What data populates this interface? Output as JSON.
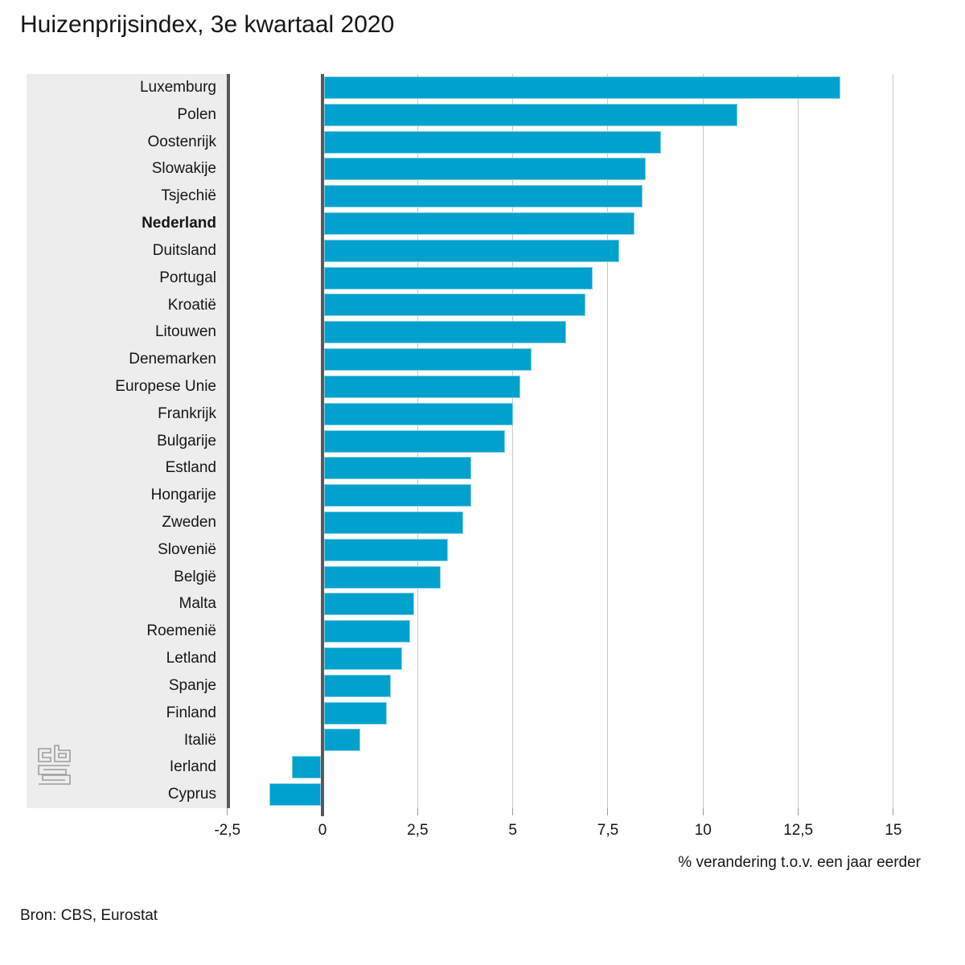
{
  "chart_data": {
    "type": "bar",
    "orientation": "horizontal",
    "title": "Huizenprijsindex, 3e kwartaal 2020",
    "source": "Bron: CBS, Eurostat",
    "xlabel": "% verandering t.o.v. een jaar eerder",
    "categories": [
      "Luxemburg",
      "Polen",
      "Oostenrijk",
      "Slowakije",
      "Tsjechië",
      "Nederland",
      "Duitsland",
      "Portugal",
      "Kroatië",
      "Litouwen",
      "Denemarken",
      "Europese Unie",
      "Frankrijk",
      "Bulgarije",
      "Estland",
      "Hongarije",
      "Zweden",
      "Slovenië",
      "België",
      "Malta",
      "Roemenië",
      "Letland",
      "Spanje",
      "Finland",
      "Italië",
      "Ierland",
      "Cyprus"
    ],
    "values": [
      13.6,
      10.9,
      8.9,
      8.5,
      8.4,
      8.2,
      7.8,
      7.1,
      6.9,
      6.4,
      5.5,
      5.2,
      5.0,
      4.8,
      3.9,
      3.9,
      3.7,
      3.3,
      3.1,
      2.4,
      2.3,
      2.1,
      1.8,
      1.7,
      1.0,
      -0.8,
      -1.4
    ],
    "bold_category": "Nederland",
    "xticks": [
      -2.5,
      0,
      2.5,
      5,
      7.5,
      10,
      12.5,
      15
    ],
    "xtick_labels": [
      "-2,5",
      "0",
      "2,5",
      "5",
      "7,5",
      "10",
      "12,5",
      "15"
    ],
    "xlim": [
      -2.5,
      16.6
    ],
    "grid": true,
    "legend": false,
    "bar_color": "#00a1cd",
    "zero_line_color": "#58585a",
    "gridline_color": "#c9c9c9",
    "label_panel_color": "#ededed",
    "logo": "cbs-logo"
  }
}
